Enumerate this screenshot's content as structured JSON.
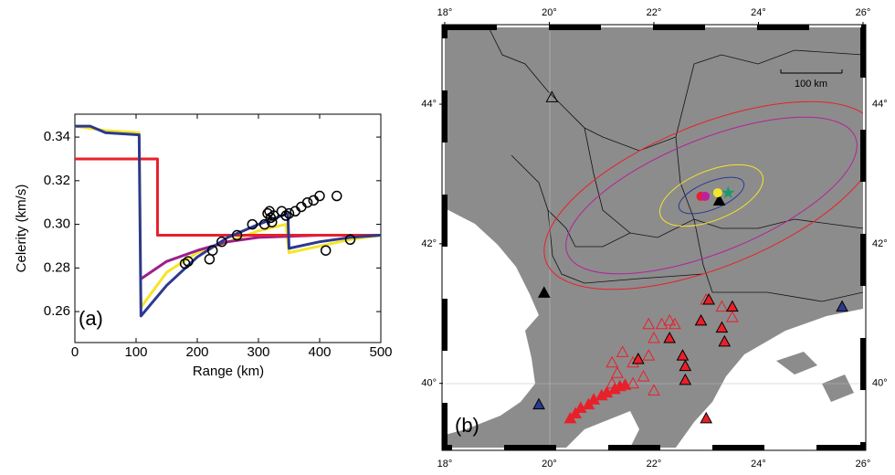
{
  "chart_data": [
    {
      "type": "line",
      "x_label": "Range (km)",
      "y_label": "Celerity (km/s)",
      "annotation": "(a)",
      "xlim": [
        0,
        500
      ],
      "xticks": [
        0,
        100,
        200,
        300,
        400,
        500
      ],
      "ylim": [
        0.2458,
        0.3505
      ],
      "yticks": [
        0.26,
        0.28,
        {
          "value": 0.3,
          "label": "0.30"
        },
        0.32,
        0.34
      ],
      "series": [
        {
          "color": "#f5e52a",
          "x": [
            0,
            50,
            105,
            108,
            150,
            200,
            250,
            300,
            345,
            350,
            400,
            450,
            500
          ],
          "values": [
            0.345,
            0.343,
            0.342,
            0.262,
            0.278,
            0.287,
            0.292,
            0.297,
            0.3,
            0.287,
            0.29,
            0.293,
            0.295
          ]
        },
        {
          "color": "#9b1f8c",
          "x": [
            108,
            150,
            200,
            250,
            300,
            400,
            500
          ],
          "values": [
            0.275,
            0.283,
            0.288,
            0.292,
            0.294,
            0.295,
            0.295
          ]
        },
        {
          "color": "#e8202a",
          "x": [
            0,
            135,
            135,
            500
          ],
          "values": [
            0.33,
            0.33,
            0.295,
            0.295
          ]
        },
        {
          "color": "#2b3990",
          "x": [
            0,
            25,
            50,
            105,
            108,
            150,
            200,
            250,
            300,
            348,
            350,
            400,
            450,
            500
          ],
          "values": [
            0.345,
            0.345,
            0.342,
            0.341,
            0.258,
            0.272,
            0.285,
            0.294,
            0.3,
            0.305,
            0.289,
            0.292,
            0.294,
            0.295
          ]
        },
        {
          "marker": "circle",
          "color": "#000000",
          "x": [
            180,
            185,
            220,
            225,
            240,
            265,
            290,
            310,
            315,
            318,
            320,
            322,
            325,
            338,
            345,
            350,
            360,
            370,
            380,
            390,
            400,
            410,
            428,
            450
          ],
          "values": [
            0.282,
            0.283,
            0.284,
            0.288,
            0.292,
            0.295,
            0.3,
            0.3,
            0.305,
            0.306,
            0.303,
            0.301,
            0.304,
            0.306,
            0.304,
            0.305,
            0.306,
            0.308,
            0.31,
            0.311,
            0.313,
            0.288,
            0.313,
            0.293
          ]
        }
      ]
    },
    {
      "type": "map",
      "annotation": "(b)",
      "scale_label": "100 km",
      "xlim": [
        18,
        26
      ],
      "ylim": [
        39.08,
        45.1
      ],
      "xticks": [
        {
          "value": 18,
          "label": "18°"
        },
        {
          "value": 20,
          "label": "20°"
        },
        {
          "value": 22,
          "label": "22°"
        },
        {
          "value": 24,
          "label": "24°"
        },
        {
          "value": 26,
          "label": "26°"
        }
      ],
      "yticks": [
        {
          "value": 40,
          "label": "40°"
        },
        {
          "value": 42,
          "label": "42°"
        },
        {
          "value": 44,
          "label": "44°"
        }
      ],
      "series": [
        {
          "marker": "triangle",
          "color": "#e8202a",
          "fill": "#e8202a",
          "x": [
            20.4,
            20.5,
            20.6,
            20.75,
            20.85,
            21.0,
            21.1,
            21.25,
            21.35,
            21.45
          ],
          "values": [
            39.5,
            39.57,
            39.65,
            39.7,
            39.77,
            39.83,
            39.87,
            39.92,
            39.96,
            39.98
          ]
        },
        {
          "marker": "triangle",
          "color": "#e8202a",
          "fill": "none",
          "x": [
            21.2,
            21.3,
            21.4,
            21.6,
            21.8,
            21.9,
            22.0,
            22.15,
            22.3,
            22.4,
            21.9,
            23.0,
            23.3,
            23.5,
            21.6,
            21.2,
            22.0
          ],
          "values": [
            40.3,
            40.15,
            40.45,
            40.3,
            40.1,
            40.4,
            40.65,
            40.85,
            40.9,
            40.85,
            40.85,
            41.2,
            41.1,
            40.95,
            40.0,
            40.0,
            39.9
          ]
        },
        {
          "marker": "triangle",
          "color": "#000000",
          "fill": "#e8202a",
          "x": [
            22.6,
            22.55,
            22.6,
            21.7,
            22.3,
            22.9,
            23.3,
            23.35,
            23.5,
            23.05,
            23.0
          ],
          "values": [
            40.25,
            40.4,
            40.05,
            40.35,
            40.65,
            40.9,
            40.8,
            40.6,
            41.1,
            41.2,
            39.5
          ]
        },
        {
          "marker": "triangle",
          "color": "#000000",
          "fill": "#000000",
          "x": [
            19.9,
            23.25
          ],
          "values": [
            41.3,
            42.62
          ]
        },
        {
          "marker": "triangle",
          "color": "#000000",
          "fill": "#2b3990",
          "x": [
            19.8,
            25.6
          ],
          "values": [
            39.7,
            41.1
          ]
        },
        {
          "marker": "triangle",
          "color": "#000000",
          "fill": "none",
          "x": [
            20.05
          ],
          "values": [
            44.1
          ]
        },
        {
          "marker": "circle",
          "color": "#e8202a",
          "fill": "#e8202a",
          "x": [
            22.9
          ],
          "values": [
            42.68
          ]
        },
        {
          "marker": "circle",
          "color": "#c0209a",
          "fill": "#c0209a",
          "x": [
            22.98
          ],
          "values": [
            42.68
          ]
        },
        {
          "marker": "circle",
          "color": "#f5e52a",
          "fill": "#f5e52a",
          "x": [
            23.22
          ],
          "values": [
            42.73
          ]
        },
        {
          "marker": "star",
          "color": "#1a9a6a",
          "fill": "#1a9a6a",
          "x": [
            23.42
          ],
          "values": [
            42.73
          ]
        }
      ]
    }
  ]
}
